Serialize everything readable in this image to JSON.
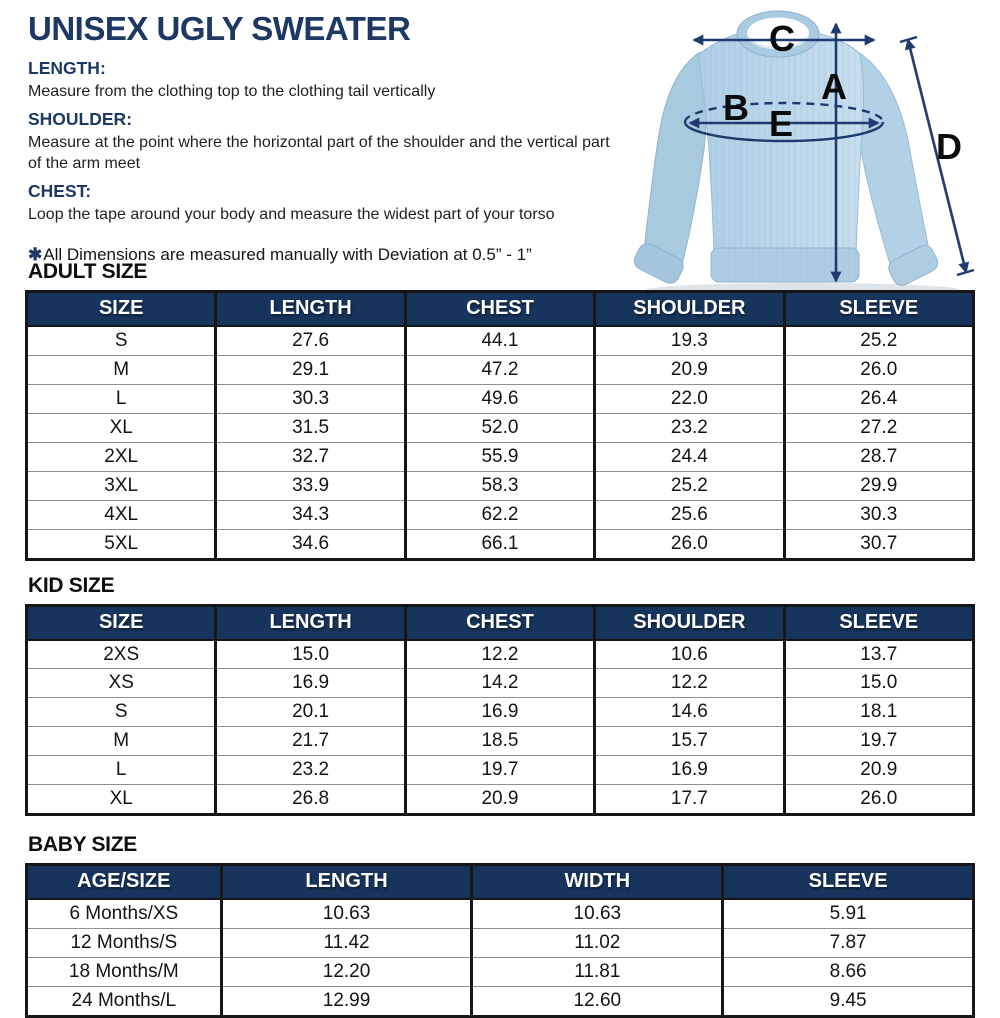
{
  "page": {
    "title": "UNISEX UGLY SWEATER"
  },
  "instructions": [
    {
      "heading": "LENGTH:",
      "text": "Measure from the clothing top to the clothing tail vertically"
    },
    {
      "heading": "SHOULDER:",
      "text": "Measure at the point where the horizontal part of the shoulder and the vertical part of the arm meet"
    },
    {
      "heading": "CHEST:",
      "text": "Loop the tape around your body and measure the widest part of your torso"
    }
  ],
  "note": {
    "symbol": "✱",
    "text": "All Dimensions are measured manually with Deviation at 0.5” - 1”"
  },
  "diagram": {
    "label_a": "A",
    "label_b": "B",
    "label_c": "C",
    "label_d": "D",
    "label_e": "E"
  },
  "tables": [
    {
      "title": "ADULT SIZE",
      "columns": [
        "SIZE",
        "LENGTH",
        "CHEST",
        "SHOULDER",
        "SLEEVE"
      ],
      "rows": [
        [
          "S",
          "27.6",
          "44.1",
          "19.3",
          "25.2"
        ],
        [
          "M",
          "29.1",
          "47.2",
          "20.9",
          "26.0"
        ],
        [
          "L",
          "30.3",
          "49.6",
          "22.0",
          "26.4"
        ],
        [
          "XL",
          "31.5",
          "52.0",
          "23.2",
          "27.2"
        ],
        [
          "2XL",
          "32.7",
          "55.9",
          "24.4",
          "28.7"
        ],
        [
          "3XL",
          "33.9",
          "58.3",
          "25.2",
          "29.9"
        ],
        [
          "4XL",
          "34.3",
          "62.2",
          "25.6",
          "30.3"
        ],
        [
          "5XL",
          "34.6",
          "66.1",
          "26.0",
          "30.7"
        ]
      ]
    },
    {
      "title": "KID SIZE",
      "columns": [
        "SIZE",
        "LENGTH",
        "CHEST",
        "SHOULDER",
        "SLEEVE"
      ],
      "rows": [
        [
          "2XS",
          "15.0",
          "12.2",
          "10.6",
          "13.7"
        ],
        [
          "XS",
          "16.9",
          "14.2",
          "12.2",
          "15.0"
        ],
        [
          "S",
          "20.1",
          "16.9",
          "14.6",
          "18.1"
        ],
        [
          "M",
          "21.7",
          "18.5",
          "15.7",
          "19.7"
        ],
        [
          "L",
          "23.2",
          "19.7",
          "16.9",
          "20.9"
        ],
        [
          "XL",
          "26.8",
          "20.9",
          "17.7",
          "26.0"
        ]
      ]
    },
    {
      "title": "BABY SIZE",
      "columns": [
        "AGE/SIZE",
        "LENGTH",
        "WIDTH",
        "SLEEVE"
      ],
      "rows": [
        [
          "6 Months/XS",
          "10.63",
          "10.63",
          "5.91"
        ],
        [
          "12 Months/S",
          "11.42",
          "11.02",
          "7.87"
        ],
        [
          "18 Months/M",
          "12.20",
          "11.81",
          "8.66"
        ],
        [
          "24 Months/L",
          "12.99",
          "12.60",
          "9.45"
        ]
      ]
    }
  ],
  "colors": {
    "navy_text": "#1d3963",
    "table_header_bg": "#17355c",
    "arrow": "#1e3a6e",
    "sweater_body": "#bcd7eb",
    "sweater_sleeve": "#a8cadf",
    "text_black": "#141414"
  }
}
